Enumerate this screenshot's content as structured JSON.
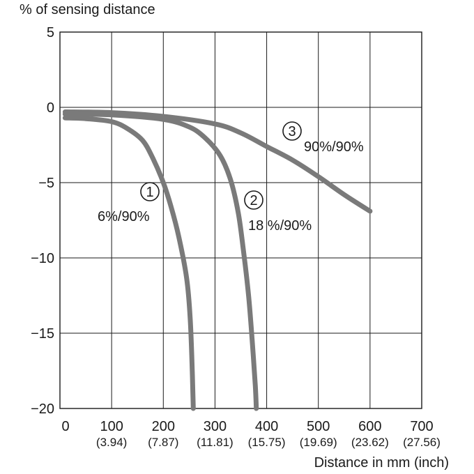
{
  "chart_data": {
    "type": "line",
    "title": "",
    "ylabel": "% of sensing distance",
    "xlabel": "Distance in mm (inch)",
    "xlim": [
      0,
      700
    ],
    "ylim": [
      -20,
      5
    ],
    "x_ticks": [
      {
        "value": 0,
        "label": "0",
        "sublabel": ""
      },
      {
        "value": 100,
        "label": "100",
        "sublabel": "(3.94)"
      },
      {
        "value": 200,
        "label": "200",
        "sublabel": "(7.87)"
      },
      {
        "value": 300,
        "label": "300",
        "sublabel": "(11.81)"
      },
      {
        "value": 400,
        "label": "400",
        "sublabel": "(15.75)"
      },
      {
        "value": 500,
        "label": "500",
        "sublabel": "(19.69)"
      },
      {
        "value": 600,
        "label": "600",
        "sublabel": "(23.62)"
      },
      {
        "value": 700,
        "label": "700",
        "sublabel": "(27.56)"
      }
    ],
    "y_ticks": [
      {
        "value": 5,
        "label": "5"
      },
      {
        "value": 0,
        "label": "0"
      },
      {
        "value": -5,
        "label": "−5"
      },
      {
        "value": -10,
        "label": "−10"
      },
      {
        "value": -15,
        "label": "−15"
      },
      {
        "value": -20,
        "label": "−20"
      }
    ],
    "grid": true,
    "line_color": "#7a7a7a",
    "series": [
      {
        "marker": "①",
        "label": "6%/90%",
        "x": [
          10,
          50,
          100,
          130,
          160,
          180,
          200,
          215,
          230,
          245,
          252,
          256,
          258
        ],
        "y": [
          -0.7,
          -0.75,
          -0.95,
          -1.4,
          -2.2,
          -3.4,
          -5.0,
          -6.6,
          -8.6,
          -11.3,
          -14.0,
          -17.5,
          -20.0
        ]
      },
      {
        "marker": "②",
        "label": "18 %/90%",
        "x": [
          10,
          100,
          200,
          250,
          280,
          310,
          330,
          345,
          355,
          365,
          372,
          378,
          380
        ],
        "y": [
          -0.45,
          -0.5,
          -0.8,
          -1.3,
          -2.0,
          -3.2,
          -4.8,
          -7.0,
          -9.5,
          -12.5,
          -15.5,
          -18.5,
          -20.0
        ]
      },
      {
        "marker": "③",
        "label": "90%/90%",
        "x": [
          10,
          100,
          200,
          300,
          350,
          400,
          450,
          500,
          550,
          600
        ],
        "y": [
          -0.3,
          -0.35,
          -0.6,
          -1.1,
          -1.7,
          -2.6,
          -3.5,
          -4.6,
          -5.8,
          -6.9
        ]
      }
    ]
  }
}
